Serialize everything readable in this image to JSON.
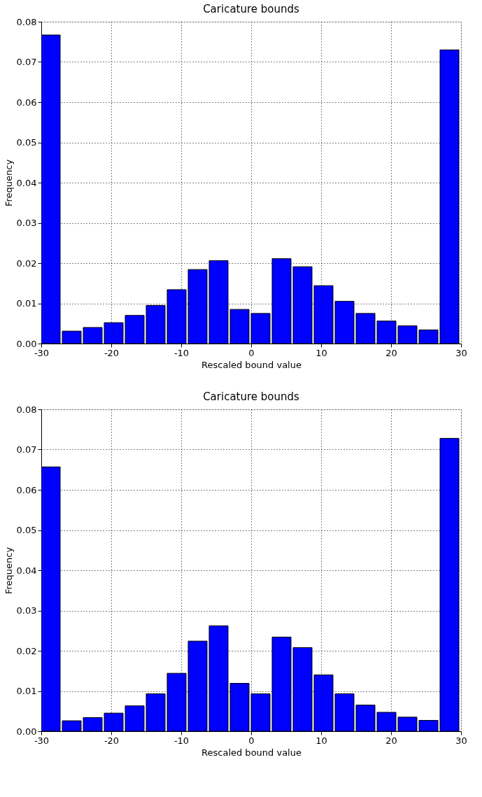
{
  "chart_data": [
    {
      "type": "histogram",
      "title": "Caricature bounds",
      "xlabel": "Rescaled bound value",
      "ylabel": "Frequency",
      "color": "#0000ff",
      "bins": [
        -30,
        -27,
        -24,
        -21,
        -18,
        -15,
        -12,
        -9,
        -6,
        -3,
        0,
        3,
        6,
        9,
        12,
        15,
        18,
        21,
        24,
        27,
        30
      ],
      "values": [
        0.0767,
        0.0031,
        0.004,
        0.0052,
        0.007,
        0.0095,
        0.0134,
        0.0184,
        0.0206,
        0.0085,
        0.0075,
        0.0211,
        0.0191,
        0.0144,
        0.0105,
        0.0075,
        0.0056,
        0.0044,
        0.0034,
        0.073
      ],
      "xlim": [
        -30,
        30
      ],
      "xticks": [
        -30,
        -20,
        -10,
        0,
        10,
        20,
        30
      ],
      "ylim": [
        0,
        0.08
      ],
      "yticks": [
        {
          "value": 0,
          "label": "0.00"
        },
        0.01,
        0.02,
        0.03,
        0.04,
        0.05,
        0.06,
        0.07,
        0.08
      ],
      "grid": true
    },
    {
      "type": "histogram",
      "title": "Caricature bounds",
      "xlabel": "Rescaled bound value",
      "ylabel": "Frequency",
      "color": "#0000ff",
      "bins": [
        -30,
        -27,
        -24,
        -21,
        -18,
        -15,
        -12,
        -9,
        -6,
        -3,
        0,
        3,
        6,
        9,
        12,
        15,
        18,
        21,
        24,
        27,
        30
      ],
      "values": [
        0.0657,
        0.0026,
        0.0034,
        0.0045,
        0.0063,
        0.0093,
        0.0144,
        0.0224,
        0.0262,
        0.0119,
        0.0093,
        0.0234,
        0.0208,
        0.014,
        0.0093,
        0.0065,
        0.0047,
        0.0035,
        0.0027,
        0.0728
      ],
      "xlim": [
        -30,
        30
      ],
      "xticks": [
        -30,
        -20,
        -10,
        0,
        10,
        20,
        30
      ],
      "ylim": [
        0,
        0.08
      ],
      "yticks": [
        {
          "value": 0,
          "label": "0.00"
        },
        0.01,
        0.02,
        0.03,
        0.04,
        0.05,
        0.06,
        0.07,
        0.08
      ],
      "grid": true
    }
  ]
}
